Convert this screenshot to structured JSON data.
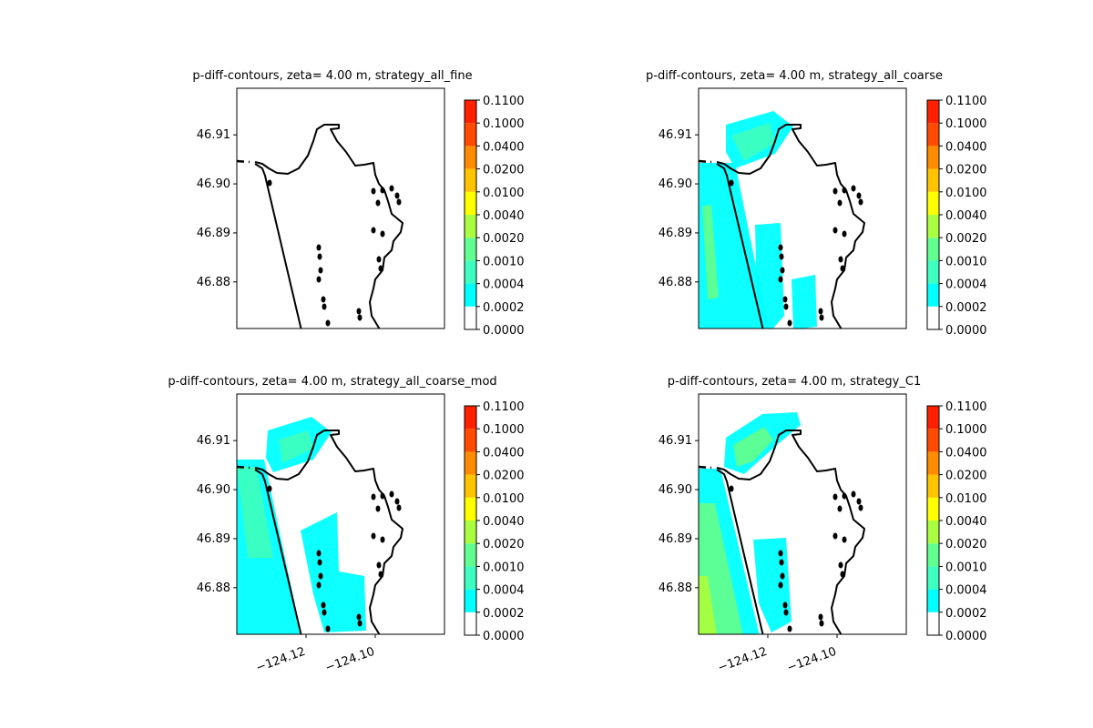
{
  "chart_data": {
    "type": "contour-map",
    "levels": [
      "0.0000",
      "0.0002",
      "0.0004",
      "0.0010",
      "0.0020",
      "0.0040",
      "0.0100",
      "0.0200",
      "0.0400",
      "0.1000",
      "0.1100"
    ],
    "level_colors": [
      "#ffffff",
      "#00ffff",
      "#3dffc0",
      "#60ff8f",
      "#a9ff3f",
      "#ffff00",
      "#ffc400",
      "#ff8c00",
      "#ff4a00",
      "#ff2000"
    ],
    "y_ticks": [
      "46.91",
      "46.90",
      "46.89",
      "46.88"
    ],
    "y_tick_values": [
      46.91,
      46.9,
      46.89,
      46.88
    ],
    "x_ticks": [
      "−124.12",
      "−124.10"
    ],
    "x_tick_values": [
      -124.12,
      -124.1
    ],
    "xlim": [
      -124.14,
      -124.08
    ],
    "ylim": [
      46.8705,
      46.9195
    ],
    "panels": [
      {
        "title": "p-diff-contours, zeta= 4.00 m, strategy_all_fine",
        "max_level_reached": "0.0000",
        "show_xticks": false
      },
      {
        "title": "p-diff-contours, zeta= 4.00 m, strategy_all_coarse",
        "max_level_reached": "0.0020",
        "show_xticks": false
      },
      {
        "title": "p-diff-contours, zeta= 4.00 m, strategy_all_coarse_mod",
        "max_level_reached": "0.0010",
        "show_xticks": true
      },
      {
        "title": "p-diff-contours, zeta= 4.00 m, strategy_C1",
        "max_level_reached": "0.0020",
        "show_xticks": true
      }
    ]
  }
}
